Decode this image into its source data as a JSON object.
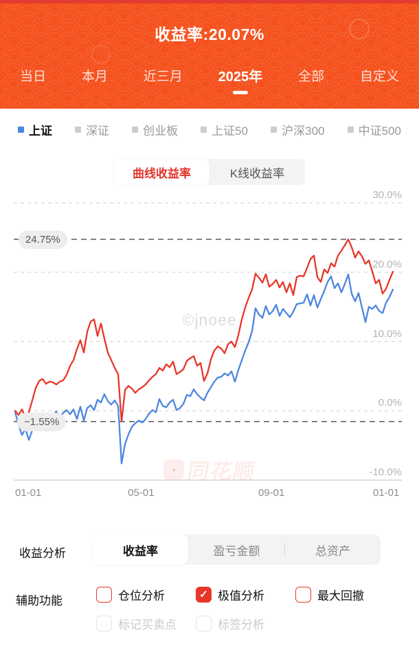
{
  "header": {
    "title": "收益率:20.07%",
    "tabs": [
      {
        "label": "当日",
        "selected": false
      },
      {
        "label": "本月",
        "selected": false
      },
      {
        "label": "近三月",
        "selected": false
      },
      {
        "label": "2025年",
        "selected": true
      },
      {
        "label": "全部",
        "selected": false
      },
      {
        "label": "自定义",
        "selected": false
      }
    ]
  },
  "legend": {
    "items": [
      {
        "label": "上证",
        "active": true,
        "swatch_color": "#4c86e0"
      },
      {
        "label": "深证",
        "active": false,
        "swatch_color": "#cccccc"
      },
      {
        "label": "创业板",
        "active": false,
        "swatch_color": "#cccccc"
      },
      {
        "label": "上证50",
        "active": false,
        "swatch_color": "#cccccc"
      },
      {
        "label": "沪深300",
        "active": false,
        "swatch_color": "#cccccc"
      },
      {
        "label": "中证500",
        "active": false,
        "swatch_color": "#cccccc"
      }
    ]
  },
  "chart_toggle": {
    "options": [
      "曲线收益率",
      "K线收益率"
    ],
    "selected": "曲线收益率"
  },
  "chart_data": {
    "type": "line",
    "ylim": [
      -10,
      30
    ],
    "y_gridlines": [
      {
        "label": "30.0%",
        "value": 30
      },
      {
        "label": "20.0%",
        "value": 20
      },
      {
        "label": "10.0%",
        "value": 10
      },
      {
        "label": "0.0%",
        "value": 0
      },
      {
        "label": "-10.0%",
        "value": -10
      }
    ],
    "x_ticks": [
      {
        "label": "01-01",
        "pos": 0,
        "align": "left"
      },
      {
        "label": "05-01",
        "pos": 0.329,
        "align": "center"
      },
      {
        "label": "09-01",
        "pos": 0.666,
        "align": "center"
      },
      {
        "label": "01-01",
        "pos": 1,
        "align": "right"
      }
    ],
    "series": [
      {
        "name": "上证",
        "color": "#4c86e0",
        "values": [
          -0.2,
          -2.0,
          -3.5,
          -2.6,
          -4.2,
          -2.8,
          -2.1,
          -2.6,
          -1.6,
          -2.2,
          -1.4,
          -0.6,
          -0.1,
          -0.9,
          -0.3,
          0.1,
          -0.5,
          0.2,
          -1.2,
          0.6,
          -1.4,
          0.4,
          0.8,
          0.1,
          1.6,
          1.2,
          2.4,
          1.4,
          0.9,
          1.5,
          0.7,
          -7.6,
          -4.8,
          -3.4,
          -2.3,
          -1.8,
          -1.4,
          -1.7,
          -1.2,
          -0.4,
          0.1,
          -0.2,
          1.7,
          0.7,
          0.5,
          1.2,
          1.6,
          0.1,
          0.4,
          1.0,
          2.3,
          2.1,
          3.1,
          2.4,
          1.9,
          1.5,
          2.6,
          3.4,
          4.2,
          4.8,
          4.9,
          5.4,
          5.1,
          5.7,
          4.2,
          5.9,
          7.3,
          8.7,
          9.9,
          11.5,
          14.8,
          13.9,
          13.4,
          15.1,
          13.9,
          14.4,
          15.3,
          13.7,
          14.7,
          14.1,
          13.5,
          14.3,
          15.4,
          15.5,
          15.6,
          16.8,
          15.2,
          16.7,
          14.9,
          16.1,
          17.3,
          18.6,
          19.4,
          17.7,
          18.4,
          17.1,
          18.3,
          19.7,
          16.9,
          15.8,
          17.0,
          14.9,
          12.8,
          15.0,
          14.7,
          15.2,
          14.4,
          14.1,
          15.6,
          16.4,
          17.5
        ]
      },
      {
        "name": "收益率",
        "color": "#e7362a",
        "values": [
          0.0,
          -0.6,
          0.2,
          -1.0,
          -0.2,
          1.5,
          3.3,
          4.3,
          4.6,
          3.9,
          4.2,
          4.1,
          3.8,
          4.2,
          4.4,
          5.2,
          6.5,
          7.3,
          8.9,
          10.2,
          8.4,
          11.4,
          12.9,
          13.2,
          10.8,
          12.6,
          10.4,
          8.4,
          7.3,
          6.2,
          5.3,
          -1.55,
          3.0,
          3.6,
          3.2,
          2.6,
          3.1,
          3.4,
          3.8,
          4.4,
          4.9,
          5.3,
          6.2,
          5.8,
          6.7,
          6.3,
          7.1,
          5.3,
          5.6,
          6.0,
          7.2,
          7.6,
          7.9,
          6.5,
          6.9,
          4.3,
          5.4,
          7.4,
          8.7,
          9.3,
          9.0,
          8.3,
          9.6,
          10.0,
          9.2,
          10.9,
          13.2,
          14.9,
          16.3,
          17.5,
          19.8,
          19.2,
          18.5,
          19.7,
          17.9,
          18.3,
          18.9,
          17.8,
          18.6,
          17.1,
          18.4,
          16.7,
          19.3,
          19.5,
          19.4,
          20.6,
          21.9,
          22.4,
          19.3,
          18.6,
          20.4,
          19.9,
          21.3,
          20.8,
          22.4,
          23.1,
          23.9,
          24.75,
          23.6,
          22.1,
          23.0,
          22.3,
          21.2,
          21.7,
          20.1,
          18.4,
          18.9,
          16.9,
          17.6,
          18.9,
          20.07
        ]
      }
    ],
    "annotations": {
      "max_label": "24.75%",
      "max_value": 24.75,
      "min_label": "−1.55%",
      "min_value": -1.55
    },
    "watermarks": {
      "center": "©jnoee",
      "brand": "同花顺",
      "brand_logo": "♦"
    }
  },
  "analysis": {
    "label": "收益分析",
    "tabs": [
      {
        "label": "收益率",
        "selected": true
      },
      {
        "label": "盈亏金额",
        "selected": false
      },
      {
        "label": "总资产",
        "selected": false
      }
    ]
  },
  "aux": {
    "label": "辅助功能",
    "check_glyph": "✓",
    "options": [
      {
        "label": "仓位分析",
        "checked": false,
        "enabled": true,
        "row": 1
      },
      {
        "label": "极值分析",
        "checked": true,
        "enabled": true,
        "row": 1
      },
      {
        "label": "最大回撤",
        "checked": false,
        "enabled": true,
        "row": 1
      },
      {
        "label": "标记买卖点",
        "checked": false,
        "enabled": false,
        "row": 2
      },
      {
        "label": "标签分析",
        "checked": false,
        "enabled": false,
        "row": 2
      }
    ]
  }
}
